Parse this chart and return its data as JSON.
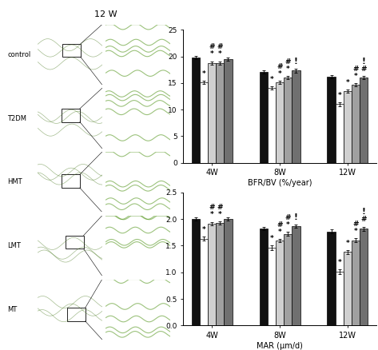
{
  "title": "12 W",
  "legend_labels": [
    "control",
    "T2DM",
    "HMT",
    "LMT",
    "MT"
  ],
  "legend_colors": [
    "#111111",
    "#ffffff",
    "#d0d0d0",
    "#a0a0a0",
    "#707070"
  ],
  "time_points": [
    "4W",
    "8W",
    "12W"
  ],
  "bfr_values": [
    [
      19.8,
      15.1,
      18.8,
      18.8,
      19.5
    ],
    [
      17.1,
      14.0,
      15.1,
      16.0,
      17.3
    ],
    [
      16.1,
      11.0,
      13.4,
      14.6,
      16.0
    ]
  ],
  "bfr_errors": [
    [
      0.3,
      0.3,
      0.3,
      0.3,
      0.3
    ],
    [
      0.3,
      0.3,
      0.3,
      0.3,
      0.4
    ],
    [
      0.3,
      0.4,
      0.3,
      0.3,
      0.3
    ]
  ],
  "mar_values": [
    [
      2.0,
      1.63,
      1.92,
      1.93,
      2.0
    ],
    [
      1.82,
      1.46,
      1.6,
      1.72,
      1.87
    ],
    [
      1.77,
      1.01,
      1.38,
      1.6,
      1.82
    ]
  ],
  "mar_errors": [
    [
      0.03,
      0.04,
      0.03,
      0.03,
      0.03
    ],
    [
      0.03,
      0.04,
      0.03,
      0.04,
      0.03
    ],
    [
      0.04,
      0.05,
      0.04,
      0.04,
      0.04
    ]
  ],
  "bfr_ylim": [
    0,
    25
  ],
  "mar_ylim": [
    0.0,
    2.5
  ],
  "bfr_yticks": [
    0,
    5,
    10,
    15,
    20,
    25
  ],
  "mar_yticks": [
    0.0,
    0.5,
    1.0,
    1.5,
    2.0,
    2.5
  ],
  "bfr_ylabel": "BFR/BV (%/year)",
  "mar_ylabel": "MAR (μm/d)",
  "bfr_annot": {
    "4W": [
      [
        "*",
        1
      ],
      [
        "*",
        2
      ],
      [
        "*",
        3
      ],
      [
        "#",
        2
      ],
      [
        "#",
        3
      ]
    ],
    "8W": [
      [
        "*",
        1
      ],
      [
        "*",
        2
      ],
      [
        "*",
        3
      ],
      [
        "#",
        2
      ],
      [
        "#",
        3
      ],
      [
        "!",
        4
      ]
    ],
    "12W": [
      [
        "*",
        1
      ],
      [
        "*",
        2
      ],
      [
        "*",
        3
      ],
      [
        "#",
        3
      ],
      [
        "#",
        4
      ],
      [
        "!",
        4
      ]
    ]
  },
  "mar_annot": {
    "4W": [
      [
        "*",
        1
      ],
      [
        "*",
        2
      ],
      [
        "*",
        3
      ],
      [
        "#",
        2
      ],
      [
        "#",
        3
      ]
    ],
    "8W": [
      [
        "*",
        1
      ],
      [
        "*",
        2
      ],
      [
        "*",
        3
      ],
      [
        "#",
        2
      ],
      [
        "#",
        3
      ],
      [
        "!",
        4
      ]
    ],
    "12W": [
      [
        "*",
        1
      ],
      [
        "*",
        2
      ],
      [
        "*",
        3
      ],
      [
        "#",
        3
      ],
      [
        "#",
        4
      ],
      [
        "!",
        4
      ]
    ]
  },
  "group_labels": [
    "control",
    "T2DM",
    "HMT",
    "LMT",
    "MT"
  ],
  "img_colors_left": [
    [
      "#1a3a0a",
      "#2a5a10",
      "#1a3a0a"
    ],
    [
      "#152808",
      "#1e3a0c",
      "#152808"
    ],
    [
      "#1a4008",
      "#2a6010",
      "#1a4008"
    ],
    [
      "#152808",
      "#1a3a0a",
      "#152808"
    ],
    [
      "#0d2005",
      "#152808",
      "#0d2005"
    ]
  ],
  "img_colors_right": [
    "#253a10",
    "#1a2e08",
    "#2a4a10",
    "#1e3808",
    "#202e0a"
  ],
  "background_color": "#ffffff"
}
